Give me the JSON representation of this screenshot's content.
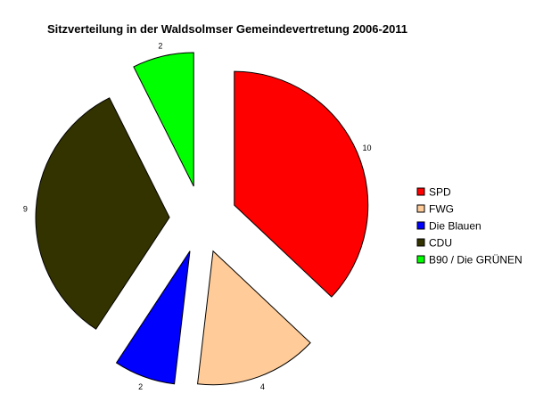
{
  "chart_data": {
    "type": "pie",
    "title": "Sitzverteilung in der Waldsolmser Gemeindevertretung 2006-2011",
    "categories": [
      "SPD",
      "FWG",
      "Die Blauen",
      "CDU",
      "B90 / Die GRÜNEN"
    ],
    "values": [
      10,
      4,
      2,
      9,
      2
    ],
    "colors": [
      "#FF0000",
      "#FFCC99",
      "#0000FF",
      "#333300",
      "#00FF00"
    ],
    "exploded": true,
    "legend_position": "right"
  }
}
